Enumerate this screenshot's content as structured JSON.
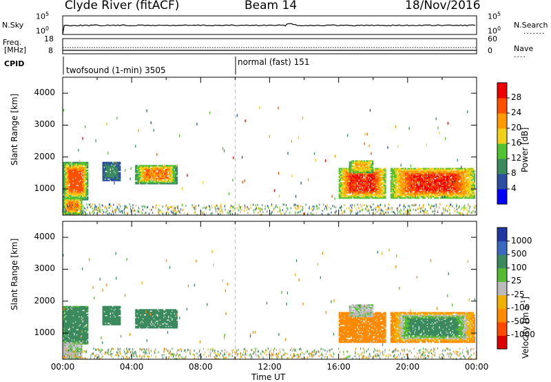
{
  "header": {
    "station": "Clyde River (fitACF)",
    "beam": "Beam 14",
    "date": "18/Nov/2016"
  },
  "side_labels": {
    "nsky": "N.Sky",
    "nsearch": "N.Search",
    "freq_line1": "Freq.",
    "freq_line2": "[MHz]",
    "nave": "Nave",
    "cpid": "CPID"
  },
  "status_panels": {
    "noise": {
      "left_ticks": [
        "10^5",
        "10^0"
      ],
      "right_ticks": [
        "10^5",
        "10^0"
      ]
    },
    "freq": {
      "left_ticks": [
        "18",
        "8"
      ],
      "right_ticks": [
        "60",
        "0"
      ]
    },
    "cpid_segments": [
      {
        "label": "twofsound (1-min) 3505",
        "start_hour": 0.0
      },
      {
        "label": "normal (fast) 151",
        "start_hour": 10.0
      }
    ]
  },
  "colors": {
    "power_scale": [
      "#0000ff",
      "#2a4fa0",
      "#3a8a5e",
      "#52c232",
      "#f0d018",
      "#ff9a00",
      "#ff5000",
      "#ee0000"
    ],
    "velocity_scale": [
      "#2038a0",
      "#3a6ac0",
      "#3a8a5e",
      "#55bb33",
      "#bbbbbb",
      "#f0b000",
      "#ff8a00",
      "#ff4a00",
      "#e00000"
    ]
  },
  "chart_data": [
    {
      "type": "heatmap",
      "panel": "power",
      "xlabel": "",
      "ylabel": "Slant Range [km]",
      "xlim": [
        0,
        24
      ],
      "ylim": [
        180,
        4500
      ],
      "yticks": [
        "1000",
        "2000",
        "3000",
        "4000"
      ],
      "colorbar": {
        "label": "Power [dB]",
        "ticks": [
          "4",
          "8",
          "12",
          "16",
          "20",
          "24",
          "28"
        ],
        "range": [
          0,
          32
        ]
      },
      "echo_regions": [
        {
          "t0": 0.0,
          "t1": 1.45,
          "r0": 650,
          "r1": 1850,
          "value_core": 26,
          "value_edge": 10
        },
        {
          "t0": 0.0,
          "t1": 1.1,
          "r0": 200,
          "r1": 700,
          "value_core": 24,
          "value_edge": 12
        },
        {
          "t0": 2.3,
          "t1": 3.3,
          "r0": 1250,
          "r1": 1850,
          "value_core": 10,
          "value_edge": 6
        },
        {
          "t0": 4.2,
          "t1": 6.6,
          "r0": 1150,
          "r1": 1750,
          "value_core": 24,
          "value_edge": 10
        },
        {
          "t0": 16.0,
          "t1": 18.7,
          "r0": 700,
          "r1": 1650,
          "value_core": 28,
          "value_edge": 14
        },
        {
          "t0": 16.6,
          "t1": 18.0,
          "r0": 1500,
          "r1": 1900,
          "value_core": 20,
          "value_edge": 12
        },
        {
          "t0": 19.0,
          "t1": 23.9,
          "r0": 700,
          "r1": 1650,
          "value_core": 28,
          "value_edge": 14
        }
      ]
    },
    {
      "type": "heatmap",
      "panel": "velocity",
      "xlabel": "Time UT",
      "ylabel": "Slant Range [km]",
      "xlim": [
        0,
        24
      ],
      "ylim": [
        180,
        4500
      ],
      "xticks": [
        "00:00",
        "04:00",
        "08:00",
        "12:00",
        "16:00",
        "20:00",
        "00:00"
      ],
      "yticks": [
        "1000",
        "2000",
        "3000",
        "4000"
      ],
      "colorbar": {
        "label": "Velocity [m s^-1]",
        "ticks": [
          "1000",
          "500",
          "100",
          "25",
          "-25",
          "-100",
          "-500",
          "-1000"
        ]
      },
      "echo_regions": [
        {
          "t0": 0.0,
          "t1": 1.45,
          "r0": 650,
          "r1": 1850,
          "value_core": 200,
          "value_edge": 100
        },
        {
          "t0": 0.0,
          "t1": 1.1,
          "r0": 200,
          "r1": 700,
          "value_core": 10,
          "value_edge": 10
        },
        {
          "t0": 2.3,
          "t1": 3.3,
          "r0": 1250,
          "r1": 1850,
          "value_core": 300,
          "value_edge": 200
        },
        {
          "t0": 4.2,
          "t1": 6.6,
          "r0": 1150,
          "r1": 1750,
          "value_core": 200,
          "value_edge": 200
        },
        {
          "t0": 16.0,
          "t1": 18.7,
          "r0": 700,
          "r1": 1650,
          "value_core": -150,
          "value_edge": -150
        },
        {
          "t0": 16.6,
          "t1": 18.0,
          "r0": 1500,
          "r1": 1900,
          "value_core": 10,
          "value_edge": 10
        },
        {
          "t0": 19.0,
          "t1": 23.9,
          "r0": 700,
          "r1": 1650,
          "value_core": 150,
          "value_edge": -150
        }
      ]
    }
  ]
}
